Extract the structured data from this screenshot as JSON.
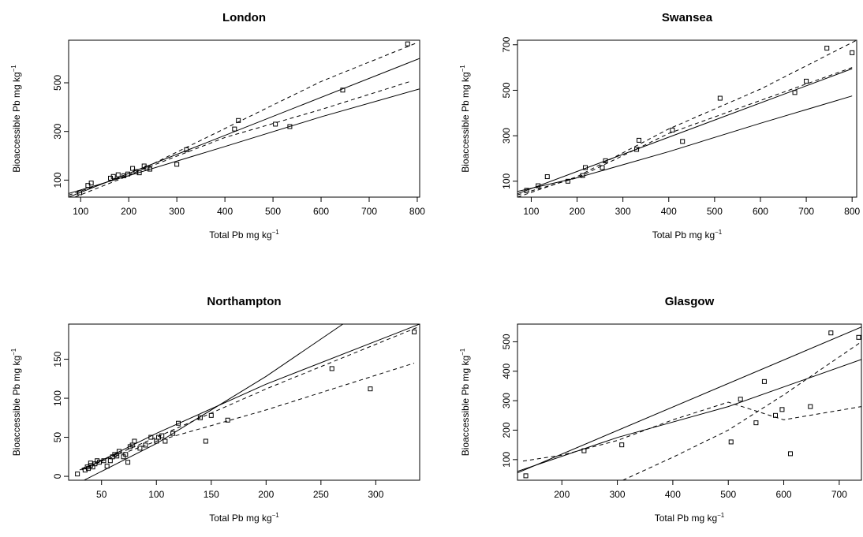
{
  "chart_data": [
    {
      "type": "scatter",
      "title": "London",
      "xlabel": "Total Pb mg kg",
      "ylabel": "Bioaccessible Pb mg kg",
      "label_superscript": "−1",
      "xlim": [
        75,
        805
      ],
      "ylim": [
        30,
        675
      ],
      "xticks": [
        100,
        200,
        300,
        400,
        500,
        600,
        700,
        800
      ],
      "yticks": [
        100,
        300,
        500
      ],
      "points": [
        [
          98,
          48
        ],
        [
          115,
          78
        ],
        [
          122,
          88
        ],
        [
          162,
          108
        ],
        [
          168,
          115
        ],
        [
          178,
          122
        ],
        [
          190,
          118
        ],
        [
          198,
          125
        ],
        [
          208,
          148
        ],
        [
          215,
          135
        ],
        [
          222,
          130
        ],
        [
          232,
          158
        ],
        [
          238,
          150
        ],
        [
          244,
          145
        ],
        [
          300,
          165
        ],
        [
          320,
          225
        ],
        [
          420,
          310
        ],
        [
          428,
          345
        ],
        [
          505,
          330
        ],
        [
          535,
          320
        ],
        [
          645,
          470
        ],
        [
          780,
          660
        ]
      ],
      "lines": [
        {
          "style": "solid",
          "points": [
            [
              75,
              30
            ],
            [
              805,
              600
            ]
          ]
        },
        {
          "style": "solid",
          "points": [
            [
              75,
              45
            ],
            [
              200,
              118
            ],
            [
              400,
              238
            ],
            [
              600,
              360
            ],
            [
              805,
              475
            ]
          ]
        },
        {
          "style": "dashed",
          "points": [
            [
              75,
              20
            ],
            [
              200,
              118
            ],
            [
              400,
              312
            ],
            [
              600,
              505
            ],
            [
              800,
              665
            ]
          ]
        },
        {
          "style": "dashed",
          "points": [
            [
              75,
              38
            ],
            [
              200,
              122
            ],
            [
              400,
              275
            ],
            [
              600,
              390
            ],
            [
              785,
              505
            ]
          ]
        }
      ]
    },
    {
      "type": "scatter",
      "title": "Swansea",
      "xlabel": "Total Pb mg kg",
      "ylabel": "Bioaccessible Pb mg kg",
      "label_superscript": "−1",
      "xlim": [
        70,
        810
      ],
      "ylim": [
        30,
        720
      ],
      "xticks": [
        100,
        200,
        300,
        400,
        500,
        600,
        700,
        800
      ],
      "yticks": [
        100,
        300,
        500,
        700
      ],
      "points": [
        [
          90,
          60
        ],
        [
          115,
          80
        ],
        [
          135,
          120
        ],
        [
          180,
          100
        ],
        [
          212,
          125
        ],
        [
          218,
          160
        ],
        [
          255,
          160
        ],
        [
          262,
          190
        ],
        [
          330,
          240
        ],
        [
          335,
          280
        ],
        [
          408,
          325
        ],
        [
          430,
          275
        ],
        [
          512,
          465
        ],
        [
          675,
          490
        ],
        [
          700,
          540
        ],
        [
          745,
          685
        ],
        [
          800,
          665
        ]
      ],
      "lines": [
        {
          "style": "solid",
          "points": [
            [
              70,
              45
            ],
            [
              800,
              595
            ]
          ]
        },
        {
          "style": "solid",
          "points": [
            [
              70,
              55
            ],
            [
              200,
              115
            ],
            [
              400,
              230
            ],
            [
              600,
              355
            ],
            [
              800,
              475
            ]
          ]
        },
        {
          "style": "dashed",
          "points": [
            [
              70,
              30
            ],
            [
              200,
              120
            ],
            [
              400,
              330
            ],
            [
              600,
              505
            ],
            [
              810,
              720
            ]
          ]
        },
        {
          "style": "dashed",
          "points": [
            [
              70,
              40
            ],
            [
              200,
              115
            ],
            [
              400,
              310
            ],
            [
              600,
              455
            ],
            [
              800,
              600
            ]
          ]
        }
      ]
    },
    {
      "type": "scatter",
      "title": "Northampton",
      "xlabel": "Total Pb mg kg",
      "ylabel": "Bioaccessible Pb mg kg",
      "label_superscript": "−1",
      "xlim": [
        20,
        340
      ],
      "ylim": [
        -5,
        195
      ],
      "xticks": [
        50,
        100,
        150,
        200,
        250,
        300
      ],
      "yticks": [
        0,
        50,
        100,
        150
      ],
      "points": [
        [
          28,
          3
        ],
        [
          35,
          8
        ],
        [
          37,
          12
        ],
        [
          38,
          10
        ],
        [
          40,
          14
        ],
        [
          40,
          17
        ],
        [
          42,
          12
        ],
        [
          44,
          16
        ],
        [
          46,
          20
        ],
        [
          48,
          18
        ],
        [
          52,
          20
        ],
        [
          55,
          13
        ],
        [
          58,
          20
        ],
        [
          60,
          25
        ],
        [
          62,
          28
        ],
        [
          64,
          26
        ],
        [
          66,
          32
        ],
        [
          70,
          25
        ],
        [
          72,
          28
        ],
        [
          74,
          18
        ],
        [
          76,
          38
        ],
        [
          78,
          40
        ],
        [
          80,
          45
        ],
        [
          85,
          36
        ],
        [
          90,
          40
        ],
        [
          95,
          50
        ],
        [
          100,
          45
        ],
        [
          102,
          50
        ],
        [
          105,
          52
        ],
        [
          108,
          45
        ],
        [
          115,
          55
        ],
        [
          120,
          68
        ],
        [
          140,
          75
        ],
        [
          145,
          45
        ],
        [
          150,
          78
        ],
        [
          165,
          72
        ],
        [
          260,
          138
        ],
        [
          295,
          112
        ],
        [
          335,
          185
        ]
      ],
      "lines": [
        {
          "style": "solid",
          "points": [
            [
              20,
              -15
            ],
            [
              100,
              42
            ],
            [
              200,
              128
            ],
            [
              270,
              195
            ]
          ]
        },
        {
          "style": "solid",
          "points": [
            [
              32,
              8
            ],
            [
              100,
              55
            ],
            [
              200,
              118
            ],
            [
              340,
              195
            ]
          ]
        },
        {
          "style": "dashed",
          "points": [
            [
              30,
              8
            ],
            [
              100,
              50
            ],
            [
              200,
              112
            ],
            [
              340,
              192
            ]
          ]
        },
        {
          "style": "dashed",
          "points": [
            [
              32,
              10
            ],
            [
              100,
              45
            ],
            [
              200,
              85
            ],
            [
              335,
              145
            ]
          ]
        }
      ]
    },
    {
      "type": "scatter",
      "title": "Glasgow",
      "xlabel": "Total Pb mg kg",
      "ylabel": "Bioaccessible Pb mg kg",
      "label_superscript": "−1",
      "xlim": [
        120,
        740
      ],
      "ylim": [
        30,
        560
      ],
      "xticks": [
        200,
        300,
        400,
        500,
        600,
        700
      ],
      "yticks": [
        100,
        200,
        300,
        400,
        500
      ],
      "points": [
        [
          135,
          45
        ],
        [
          240,
          130
        ],
        [
          308,
          150
        ],
        [
          505,
          160
        ],
        [
          522,
          305
        ],
        [
          550,
          225
        ],
        [
          565,
          365
        ],
        [
          585,
          250
        ],
        [
          597,
          270
        ],
        [
          612,
          120
        ],
        [
          648,
          280
        ],
        [
          685,
          530
        ],
        [
          735,
          515
        ]
      ],
      "lines": [
        {
          "style": "solid",
          "points": [
            [
              120,
              55
            ],
            [
              740,
              550
            ]
          ]
        },
        {
          "style": "solid",
          "points": [
            [
              120,
              60
            ],
            [
              300,
              175
            ],
            [
              500,
              280
            ],
            [
              740,
              440
            ]
          ]
        },
        {
          "style": "dashed",
          "points": [
            [
              310,
              30
            ],
            [
              400,
              108
            ],
            [
              500,
              200
            ],
            [
              600,
              320
            ],
            [
              740,
              500
            ]
          ]
        },
        {
          "style": "dashed",
          "points": [
            [
              130,
              95
            ],
            [
              200,
              115
            ],
            [
              300,
              165
            ],
            [
              400,
              235
            ],
            [
              500,
              295
            ],
            [
              600,
              235
            ],
            [
              740,
              280
            ]
          ]
        }
      ]
    }
  ]
}
